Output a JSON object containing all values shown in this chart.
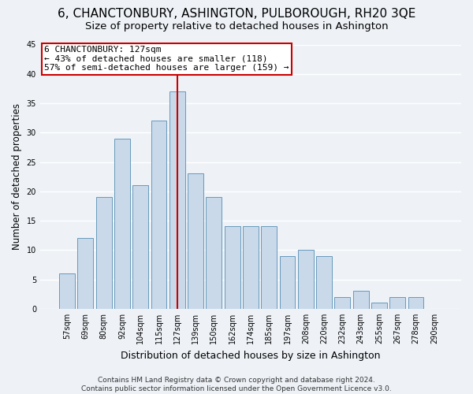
{
  "title": "6, CHANCTONBURY, ASHINGTON, PULBOROUGH, RH20 3QE",
  "subtitle": "Size of property relative to detached houses in Ashington",
  "xlabel": "Distribution of detached houses by size in Ashington",
  "ylabel": "Number of detached properties",
  "bar_labels": [
    "57sqm",
    "69sqm",
    "80sqm",
    "92sqm",
    "104sqm",
    "115sqm",
    "127sqm",
    "139sqm",
    "150sqm",
    "162sqm",
    "174sqm",
    "185sqm",
    "197sqm",
    "208sqm",
    "220sqm",
    "232sqm",
    "243sqm",
    "255sqm",
    "267sqm",
    "278sqm",
    "290sqm"
  ],
  "bar_values": [
    6,
    12,
    19,
    29,
    21,
    32,
    37,
    23,
    19,
    14,
    14,
    14,
    9,
    10,
    9,
    2,
    3,
    1,
    2,
    2,
    0
  ],
  "bar_color": "#c9d9ea",
  "bar_edge_color": "#6699bb",
  "vline_x_idx": 6,
  "vline_color": "#cc0000",
  "annotation_line1": "6 CHANCTONBURY: 127sqm",
  "annotation_line2": "← 43% of detached houses are smaller (118)",
  "annotation_line3": "57% of semi-detached houses are larger (159) →",
  "annotation_box_color": "#ffffff",
  "annotation_box_edge_color": "#cc0000",
  "ylim": [
    0,
    45
  ],
  "yticks": [
    0,
    5,
    10,
    15,
    20,
    25,
    30,
    35,
    40,
    45
  ],
  "footer_line1": "Contains HM Land Registry data © Crown copyright and database right 2024.",
  "footer_line2": "Contains public sector information licensed under the Open Government Licence v3.0.",
  "background_color": "#eef2f7",
  "grid_color": "#ffffff",
  "title_fontsize": 11,
  "subtitle_fontsize": 9.5,
  "ylabel_fontsize": 8.5,
  "xlabel_fontsize": 9,
  "tick_fontsize": 7,
  "annotation_fontsize": 8,
  "footer_fontsize": 6.5
}
